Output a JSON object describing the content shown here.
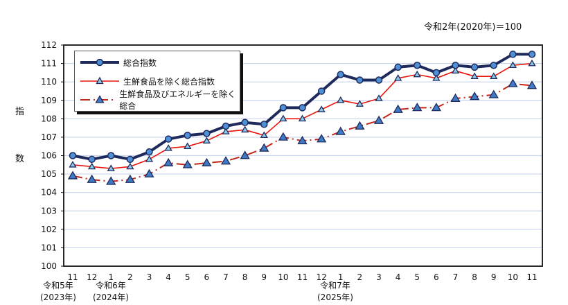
{
  "header": {
    "base_note": "令和2年(2020年)＝100"
  },
  "y_axis_label": [
    "指",
    "数"
  ],
  "era_labels": [
    {
      "line1": "令和5年",
      "line2": "(2023年)"
    },
    {
      "line1": "令和6年",
      "line2": "(2024年)"
    },
    {
      "line1": "令和7年",
      "line2": "(2025年)"
    }
  ],
  "legend": {
    "items": [
      {
        "label": "総合指数",
        "color": "#1f2a5c",
        "style": "solid-thick",
        "marker": "circle"
      },
      {
        "label": "生鮮食品を除く総合指数",
        "color": "#e8140c",
        "style": "solid",
        "marker": "triangle-small"
      },
      {
        "label": "生鮮食品及びエネルギーを除く総合",
        "color": "#c0261a",
        "style": "dash-dot",
        "marker": "triangle"
      }
    ]
  },
  "chart_data": {
    "type": "line",
    "title": "",
    "subtitle": "令和2年(2020年)＝100",
    "xlabel": "",
    "ylabel": "指数",
    "ylim": [
      100,
      112
    ],
    "yticks": [
      100,
      101,
      102,
      103,
      104,
      105,
      106,
      107,
      108,
      109,
      110,
      111,
      112
    ],
    "grid": true,
    "legend_position": "upper-left-inside",
    "categories": [
      "11",
      "12",
      "1",
      "2",
      "3",
      "4",
      "5",
      "6",
      "7",
      "8",
      "9",
      "10",
      "11",
      "12",
      "1",
      "2",
      "3",
      "4",
      "5",
      "6",
      "7",
      "8",
      "9",
      "10",
      "11"
    ],
    "category_groups": [
      {
        "label": "令和5年(2023年)",
        "start_index": 0
      },
      {
        "label": "令和6年(2024年)",
        "start_index": 2
      },
      {
        "label": "令和7年(2025年)",
        "start_index": 14
      }
    ],
    "series": [
      {
        "name": "総合指数",
        "values": [
          106.0,
          105.8,
          106.0,
          105.8,
          106.2,
          106.9,
          107.1,
          107.2,
          107.6,
          107.8,
          107.7,
          108.6,
          108.6,
          109.5,
          110.4,
          110.1,
          110.1,
          110.8,
          110.9,
          110.5,
          110.9,
          110.8,
          110.9,
          111.5,
          111.5
        ]
      },
      {
        "name": "生鮮食品を除く総合指数",
        "values": [
          105.5,
          105.4,
          105.3,
          105.4,
          105.8,
          106.4,
          106.5,
          106.8,
          107.3,
          107.4,
          107.1,
          108.0,
          108.0,
          108.5,
          109.0,
          108.8,
          109.1,
          110.2,
          110.4,
          110.2,
          110.6,
          110.3,
          110.3,
          110.9,
          111.0
        ]
      },
      {
        "name": "生鮮食品及びエネルギーを除く総合",
        "values": [
          104.9,
          104.7,
          104.6,
          104.7,
          105.0,
          105.6,
          105.5,
          105.6,
          105.7,
          106.0,
          106.4,
          107.0,
          106.8,
          106.9,
          107.3,
          107.6,
          107.9,
          108.5,
          108.6,
          108.6,
          109.1,
          109.2,
          109.3,
          109.9,
          109.8
        ]
      }
    ]
  }
}
